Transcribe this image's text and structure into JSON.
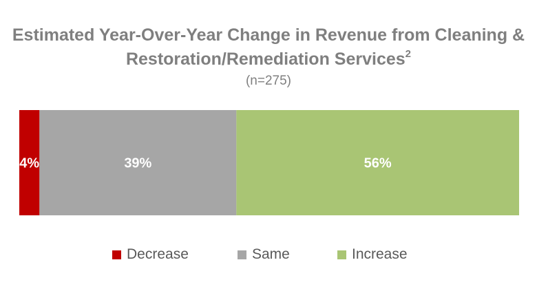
{
  "chart_data": {
    "type": "bar",
    "orientation": "horizontal-stacked",
    "title_line1": "Estimated Year-Over-Year Change in Revenue from Cleaning &",
    "title_line2": "Restoration/Remediation Services",
    "title_superscript": "2",
    "subtitle": "(n=275)",
    "series": [
      {
        "name": "Decrease",
        "value": 4,
        "label": "4%",
        "color": "#c00000"
      },
      {
        "name": "Same",
        "value": 39,
        "label": "39%",
        "color": "#a6a6a6"
      },
      {
        "name": "Increase",
        "value": 56,
        "label": "56%",
        "color": "#a9c574"
      }
    ],
    "grid": false,
    "legend_position": "bottom",
    "data_label_color": "#ffffff"
  }
}
